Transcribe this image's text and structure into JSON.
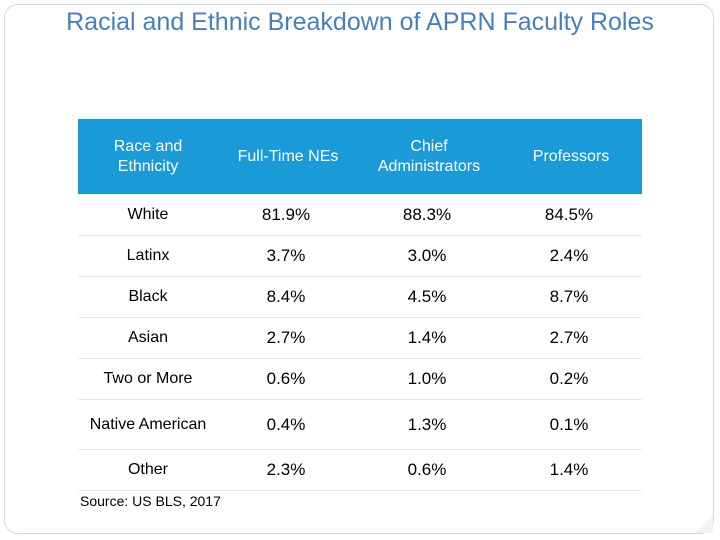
{
  "title": "Racial and Ethnic Breakdown of APRN Faculty Roles",
  "table": {
    "headers": [
      "Race and Ethnicity",
      "Full-Time NEs",
      "Chief Administrators",
      "Professors"
    ],
    "rows": [
      [
        "White",
        "81.9%",
        "88.3%",
        "84.5%"
      ],
      [
        "Latinx",
        "3.7%",
        "3.0%",
        "2.4%"
      ],
      [
        "Black",
        "8.4%",
        "4.5%",
        "8.7%"
      ],
      [
        "Asian",
        "2.7%",
        "1.4%",
        "2.7%"
      ],
      [
        "Two or More",
        "0.6%",
        "1.0%",
        "0.2%"
      ],
      [
        "Native American",
        "0.4%",
        "1.3%",
        "0.1%"
      ],
      [
        "Other",
        "2.3%",
        "0.6%",
        "1.4%"
      ]
    ]
  },
  "source": "Source: US BLS, 2017",
  "colors": {
    "title": "#4a7ebb",
    "header_bg": "#1a9ad6",
    "header_text": "#ffffff"
  }
}
